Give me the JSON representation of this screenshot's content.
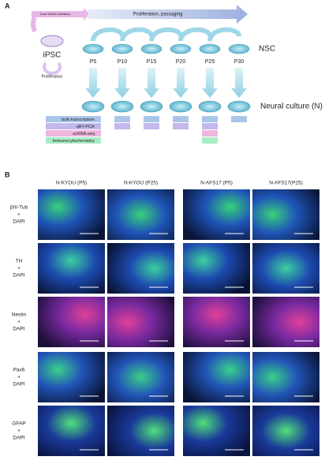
{
  "panel_a": {
    "label": "A",
    "induction_label": "Dual SMAD inhibition",
    "top_label": "Proliferation, passaging",
    "ipsc": "iPSC",
    "ipsc_label": "Proliferation",
    "passages": [
      "P5",
      "P10",
      "P15",
      "P20",
      "P25",
      "P30"
    ],
    "nsc_label": "NSC",
    "neural_label": "Neural culture (N)",
    "methods": [
      "bulk transcriptom",
      "qRT-PCR",
      "scRNA-seq",
      "Immunocytochemistry"
    ]
  },
  "panel_b": {
    "label": "B",
    "columns": [
      "N-KYOU (P5)",
      "N-KYOU (P25)",
      "N-AFS17 (P5)",
      "N-AFS17(P25)"
    ],
    "rows": [
      [
        "βIII-Tub",
        "+",
        "DAPI"
      ],
      [
        "TH",
        "+",
        "DAPI"
      ],
      [
        "Nestin",
        "+",
        "DAPI"
      ],
      [
        "Pax6",
        "+",
        "DAPI"
      ],
      [
        "GFAP",
        "+",
        "DAPI"
      ]
    ]
  }
}
